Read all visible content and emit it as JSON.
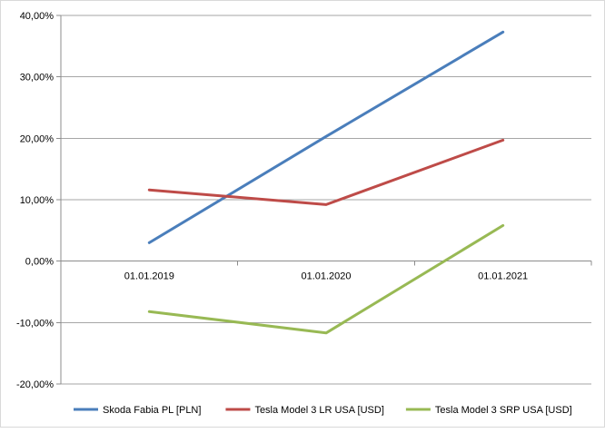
{
  "chart_data": {
    "type": "line",
    "title": "",
    "xlabel": "",
    "ylabel": "",
    "categories": [
      "01.01.2019",
      "01.01.2020",
      "01.01.2021"
    ],
    "ylim": [
      -0.2,
      0.4
    ],
    "yticks": [
      {
        "value": 0.4,
        "label": "40,00%"
      },
      {
        "value": 0.3,
        "label": "30,00%"
      },
      {
        "value": 0.2,
        "label": "20,00%"
      },
      {
        "value": 0.1,
        "label": "10,00%"
      },
      {
        "value": 0.0,
        "label": "0,00%"
      },
      {
        "value": -0.1,
        "label": "-10,00%"
      },
      {
        "value": -0.2,
        "label": "-20,00%"
      }
    ],
    "grid": true,
    "legend_position": "bottom",
    "series": [
      {
        "name": "Skoda Fabia PL [PLN]",
        "color": "#4a7ebb",
        "values": [
          0.03,
          0.203,
          0.373
        ]
      },
      {
        "name": "Tesla Model 3 LR USA [USD]",
        "color": "#be4b48",
        "values": [
          0.116,
          0.092,
          0.197
        ]
      },
      {
        "name": "Tesla Model 3 SRP USA [USD]",
        "color": "#98b954",
        "values": [
          -0.082,
          -0.117,
          0.058
        ]
      }
    ]
  }
}
